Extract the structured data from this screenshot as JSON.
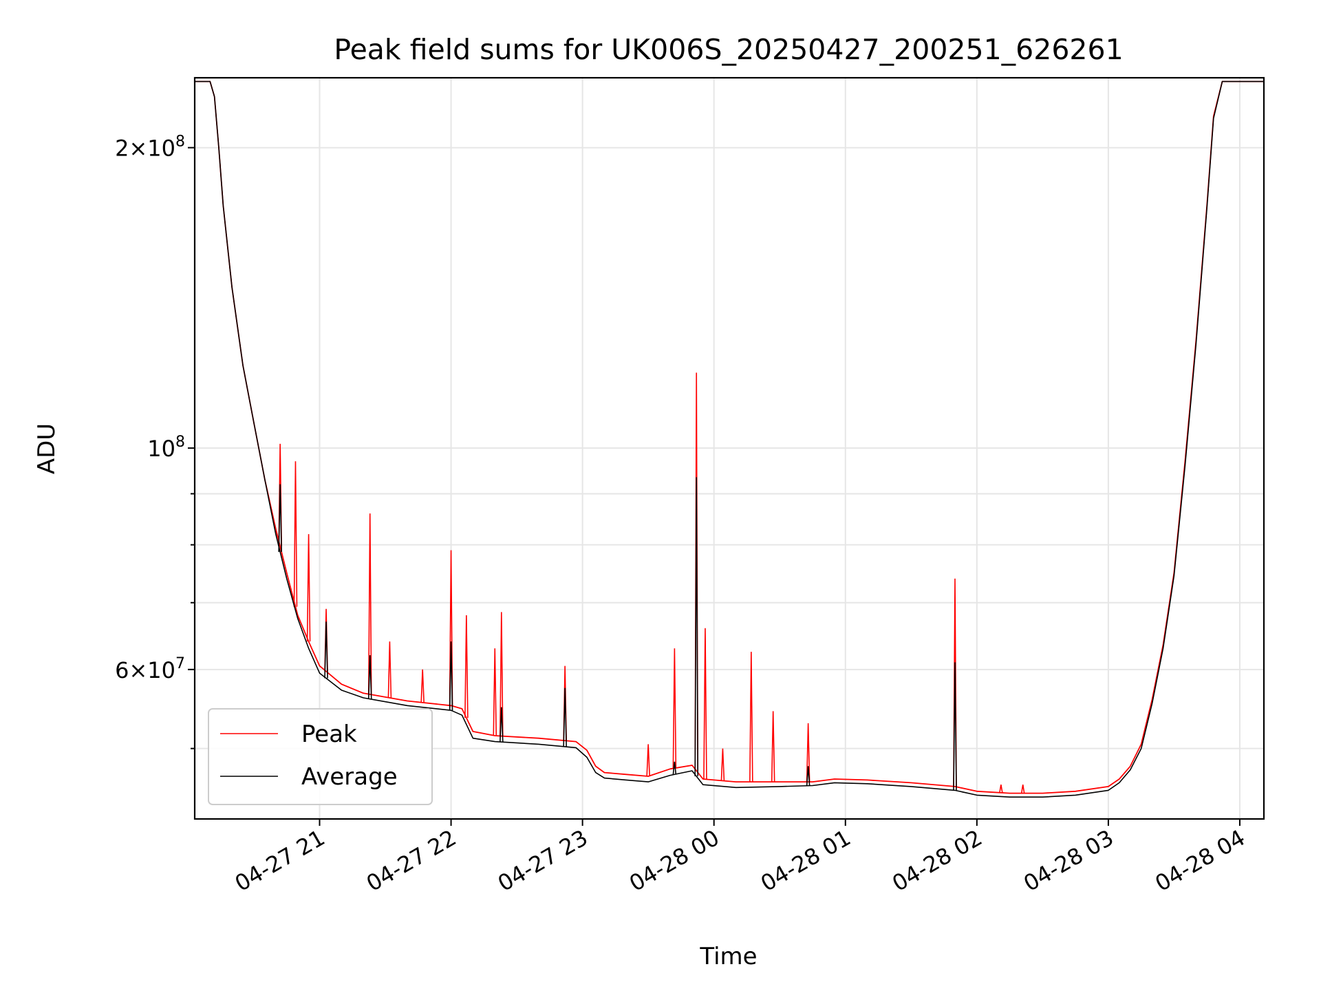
{
  "chart_data": {
    "type": "line",
    "title": "Peak field sums for UK006S_20250427_200251_626261",
    "xlabel": "Time",
    "ylabel": "ADU",
    "yscale": "log",
    "xlim": [
      "2025-04-27 20:03",
      "2025-04-28 04:11"
    ],
    "ylim": [
      42500000,
      235000000
    ],
    "x_ticks": [
      {
        "value": "2025-04-27 21:00",
        "label": "04-27 21"
      },
      {
        "value": "2025-04-27 22:00",
        "label": "04-27 22"
      },
      {
        "value": "2025-04-27 23:00",
        "label": "04-27 23"
      },
      {
        "value": "2025-04-28 00:00",
        "label": "04-28 00"
      },
      {
        "value": "2025-04-28 01:00",
        "label": "04-28 01"
      },
      {
        "value": "2025-04-28 02:00",
        "label": "04-28 02"
      },
      {
        "value": "2025-04-28 03:00",
        "label": "04-28 03"
      },
      {
        "value": "2025-04-28 04:00",
        "label": "04-28 04"
      }
    ],
    "y_major_ticks": [
      {
        "value": 200000000,
        "mantissa": "2",
        "exponent": "8"
      },
      {
        "value": 100000000,
        "mantissa": "",
        "exponent": "8"
      },
      {
        "value": 60000000,
        "mantissa": "6",
        "exponent": "7"
      }
    ],
    "y_minor_ticks": [
      90000000,
      80000000,
      70000000,
      50000000
    ],
    "grid": true,
    "legend_position": "lower-left",
    "series": [
      {
        "name": "Peak",
        "color": "#ff0000",
        "points": [
          [
            "2025-04-27 20:03",
            233000000
          ],
          [
            "2025-04-27 20:10",
            233000000
          ],
          [
            "2025-04-27 20:12",
            225000000
          ],
          [
            "2025-04-27 20:14",
            200000000
          ],
          [
            "2025-04-27 20:16",
            175000000
          ],
          [
            "2025-04-27 20:20",
            145000000
          ],
          [
            "2025-04-27 20:25",
            121000000
          ],
          [
            "2025-04-27 20:30",
            106000000
          ],
          [
            "2025-04-27 20:35",
            93000000
          ],
          [
            "2025-04-27 20:40",
            83000000
          ],
          [
            "2025-04-27 20:45",
            75000000
          ],
          [
            "2025-04-27 20:50",
            68000000
          ],
          [
            "2025-04-27 20:55",
            64000000
          ],
          [
            "2025-04-27 21:00",
            60500000
          ],
          [
            "2025-04-27 21:10",
            58000000
          ],
          [
            "2025-04-27 21:20",
            56800000
          ],
          [
            "2025-04-27 21:40",
            55800000
          ],
          [
            "2025-04-27 22:00",
            55200000
          ],
          [
            "2025-04-27 22:05",
            54800000
          ],
          [
            "2025-04-27 22:10",
            52000000
          ],
          [
            "2025-04-27 22:20",
            51500000
          ],
          [
            "2025-04-27 22:40",
            51200000
          ],
          [
            "2025-04-27 22:57",
            50800000
          ],
          [
            "2025-04-27 23:02",
            49800000
          ],
          [
            "2025-04-27 23:06",
            48000000
          ],
          [
            "2025-04-27 23:10",
            47300000
          ],
          [
            "2025-04-27 23:20",
            47100000
          ],
          [
            "2025-04-27 23:30",
            46900000
          ],
          [
            "2025-04-27 23:40",
            47700000
          ],
          [
            "2025-04-27 23:50",
            48100000
          ],
          [
            "2025-04-27 23:55",
            46600000
          ],
          [
            "2025-04-28 00:10",
            46300000
          ],
          [
            "2025-04-28 00:30",
            46300000
          ],
          [
            "2025-04-28 00:45",
            46300000
          ],
          [
            "2025-04-28 00:55",
            46600000
          ],
          [
            "2025-04-28 01:10",
            46500000
          ],
          [
            "2025-04-28 01:30",
            46200000
          ],
          [
            "2025-04-28 01:50",
            45800000
          ],
          [
            "2025-04-28 02:00",
            45300000
          ],
          [
            "2025-04-28 02:15",
            45100000
          ],
          [
            "2025-04-28 02:30",
            45100000
          ],
          [
            "2025-04-28 02:45",
            45300000
          ],
          [
            "2025-04-28 03:00",
            45800000
          ],
          [
            "2025-04-28 03:05",
            46600000
          ],
          [
            "2025-04-28 03:10",
            48000000
          ],
          [
            "2025-04-28 03:15",
            50500000
          ],
          [
            "2025-04-28 03:20",
            56000000
          ],
          [
            "2025-04-28 03:25",
            63500000
          ],
          [
            "2025-04-28 03:30",
            75000000
          ],
          [
            "2025-04-28 03:35",
            97000000
          ],
          [
            "2025-04-28 03:40",
            128000000
          ],
          [
            "2025-04-28 03:45",
            175000000
          ],
          [
            "2025-04-28 03:48",
            215000000
          ],
          [
            "2025-04-28 03:52",
            233000000
          ],
          [
            "2025-04-28 04:11",
            233000000
          ]
        ],
        "spikes": [
          [
            "2025-04-27 20:42",
            101000000
          ],
          [
            "2025-04-27 20:49",
            97000000
          ],
          [
            "2025-04-27 20:55",
            82000000
          ],
          [
            "2025-04-27 21:03",
            69000000
          ],
          [
            "2025-04-27 21:23",
            86000000
          ],
          [
            "2025-04-27 21:32",
            64000000
          ],
          [
            "2025-04-27 21:47",
            60000000
          ],
          [
            "2025-04-27 22:00",
            79000000
          ],
          [
            "2025-04-27 22:07",
            68000000
          ],
          [
            "2025-04-27 22:20",
            63000000
          ],
          [
            "2025-04-27 22:23",
            68500000
          ],
          [
            "2025-04-27 22:52",
            60500000
          ],
          [
            "2025-04-27 23:30",
            50500000
          ],
          [
            "2025-04-27 23:42",
            63000000
          ],
          [
            "2025-04-27 23:52",
            119000000
          ],
          [
            "2025-04-27 23:56",
            66000000
          ],
          [
            "2025-04-28 00:04",
            50000000
          ],
          [
            "2025-04-28 00:17",
            62500000
          ],
          [
            "2025-04-28 00:27",
            54500000
          ],
          [
            "2025-04-28 00:43",
            53000000
          ],
          [
            "2025-04-28 01:50",
            74000000
          ],
          [
            "2025-04-28 02:11",
            46000000
          ],
          [
            "2025-04-28 02:21",
            46000000
          ]
        ]
      },
      {
        "name": "Average",
        "color": "#000000",
        "points": [
          [
            "2025-04-27 20:03",
            233000000
          ],
          [
            "2025-04-27 20:10",
            233000000
          ],
          [
            "2025-04-27 20:12",
            225000000
          ],
          [
            "2025-04-27 20:14",
            200000000
          ],
          [
            "2025-04-27 20:16",
            175000000
          ],
          [
            "2025-04-27 20:20",
            145000000
          ],
          [
            "2025-04-27 20:25",
            121000000
          ],
          [
            "2025-04-27 20:30",
            106000000
          ],
          [
            "2025-04-27 20:35",
            93000000
          ],
          [
            "2025-04-27 20:40",
            82000000
          ],
          [
            "2025-04-27 20:45",
            74000000
          ],
          [
            "2025-04-27 20:50",
            67500000
          ],
          [
            "2025-04-27 20:55",
            63000000
          ],
          [
            "2025-04-27 21:00",
            59500000
          ],
          [
            "2025-04-27 21:10",
            57200000
          ],
          [
            "2025-04-27 21:20",
            56200000
          ],
          [
            "2025-04-27 21:40",
            55200000
          ],
          [
            "2025-04-27 22:00",
            54600000
          ],
          [
            "2025-04-27 22:05",
            54000000
          ],
          [
            "2025-04-27 22:10",
            51200000
          ],
          [
            "2025-04-27 22:20",
            50800000
          ],
          [
            "2025-04-27 22:40",
            50500000
          ],
          [
            "2025-04-27 22:57",
            50100000
          ],
          [
            "2025-04-27 23:02",
            49000000
          ],
          [
            "2025-04-27 23:06",
            47300000
          ],
          [
            "2025-04-27 23:10",
            46700000
          ],
          [
            "2025-04-27 23:20",
            46500000
          ],
          [
            "2025-04-27 23:30",
            46300000
          ],
          [
            "2025-04-27 23:40",
            47000000
          ],
          [
            "2025-04-27 23:50",
            47500000
          ],
          [
            "2025-04-27 23:55",
            46000000
          ],
          [
            "2025-04-28 00:10",
            45700000
          ],
          [
            "2025-04-28 00:30",
            45800000
          ],
          [
            "2025-04-28 00:45",
            45900000
          ],
          [
            "2025-04-28 00:55",
            46200000
          ],
          [
            "2025-04-28 01:10",
            46100000
          ],
          [
            "2025-04-28 01:30",
            45800000
          ],
          [
            "2025-04-28 01:50",
            45400000
          ],
          [
            "2025-04-28 02:00",
            44900000
          ],
          [
            "2025-04-28 02:15",
            44700000
          ],
          [
            "2025-04-28 02:30",
            44700000
          ],
          [
            "2025-04-28 02:45",
            44900000
          ],
          [
            "2025-04-28 03:00",
            45400000
          ],
          [
            "2025-04-28 03:05",
            46200000
          ],
          [
            "2025-04-28 03:10",
            47600000
          ],
          [
            "2025-04-28 03:15",
            50000000
          ],
          [
            "2025-04-28 03:20",
            55500000
          ],
          [
            "2025-04-28 03:25",
            63000000
          ],
          [
            "2025-04-28 03:30",
            74500000
          ],
          [
            "2025-04-28 03:35",
            96000000
          ],
          [
            "2025-04-28 03:40",
            127000000
          ],
          [
            "2025-04-28 03:45",
            174000000
          ],
          [
            "2025-04-28 03:48",
            214000000
          ],
          [
            "2025-04-28 03:52",
            233000000
          ],
          [
            "2025-04-28 04:11",
            233000000
          ]
        ],
        "spikes": [
          [
            "2025-04-27 20:42",
            92000000
          ],
          [
            "2025-04-27 21:03",
            67000000
          ],
          [
            "2025-04-27 21:23",
            62000000
          ],
          [
            "2025-04-27 22:00",
            64000000
          ],
          [
            "2025-04-27 22:23",
            55000000
          ],
          [
            "2025-04-27 22:52",
            57500000
          ],
          [
            "2025-04-27 23:42",
            48500000
          ],
          [
            "2025-04-27 23:52",
            93500000
          ],
          [
            "2025-04-28 00:43",
            48000000
          ],
          [
            "2025-04-28 01:50",
            61000000
          ]
        ]
      }
    ]
  }
}
